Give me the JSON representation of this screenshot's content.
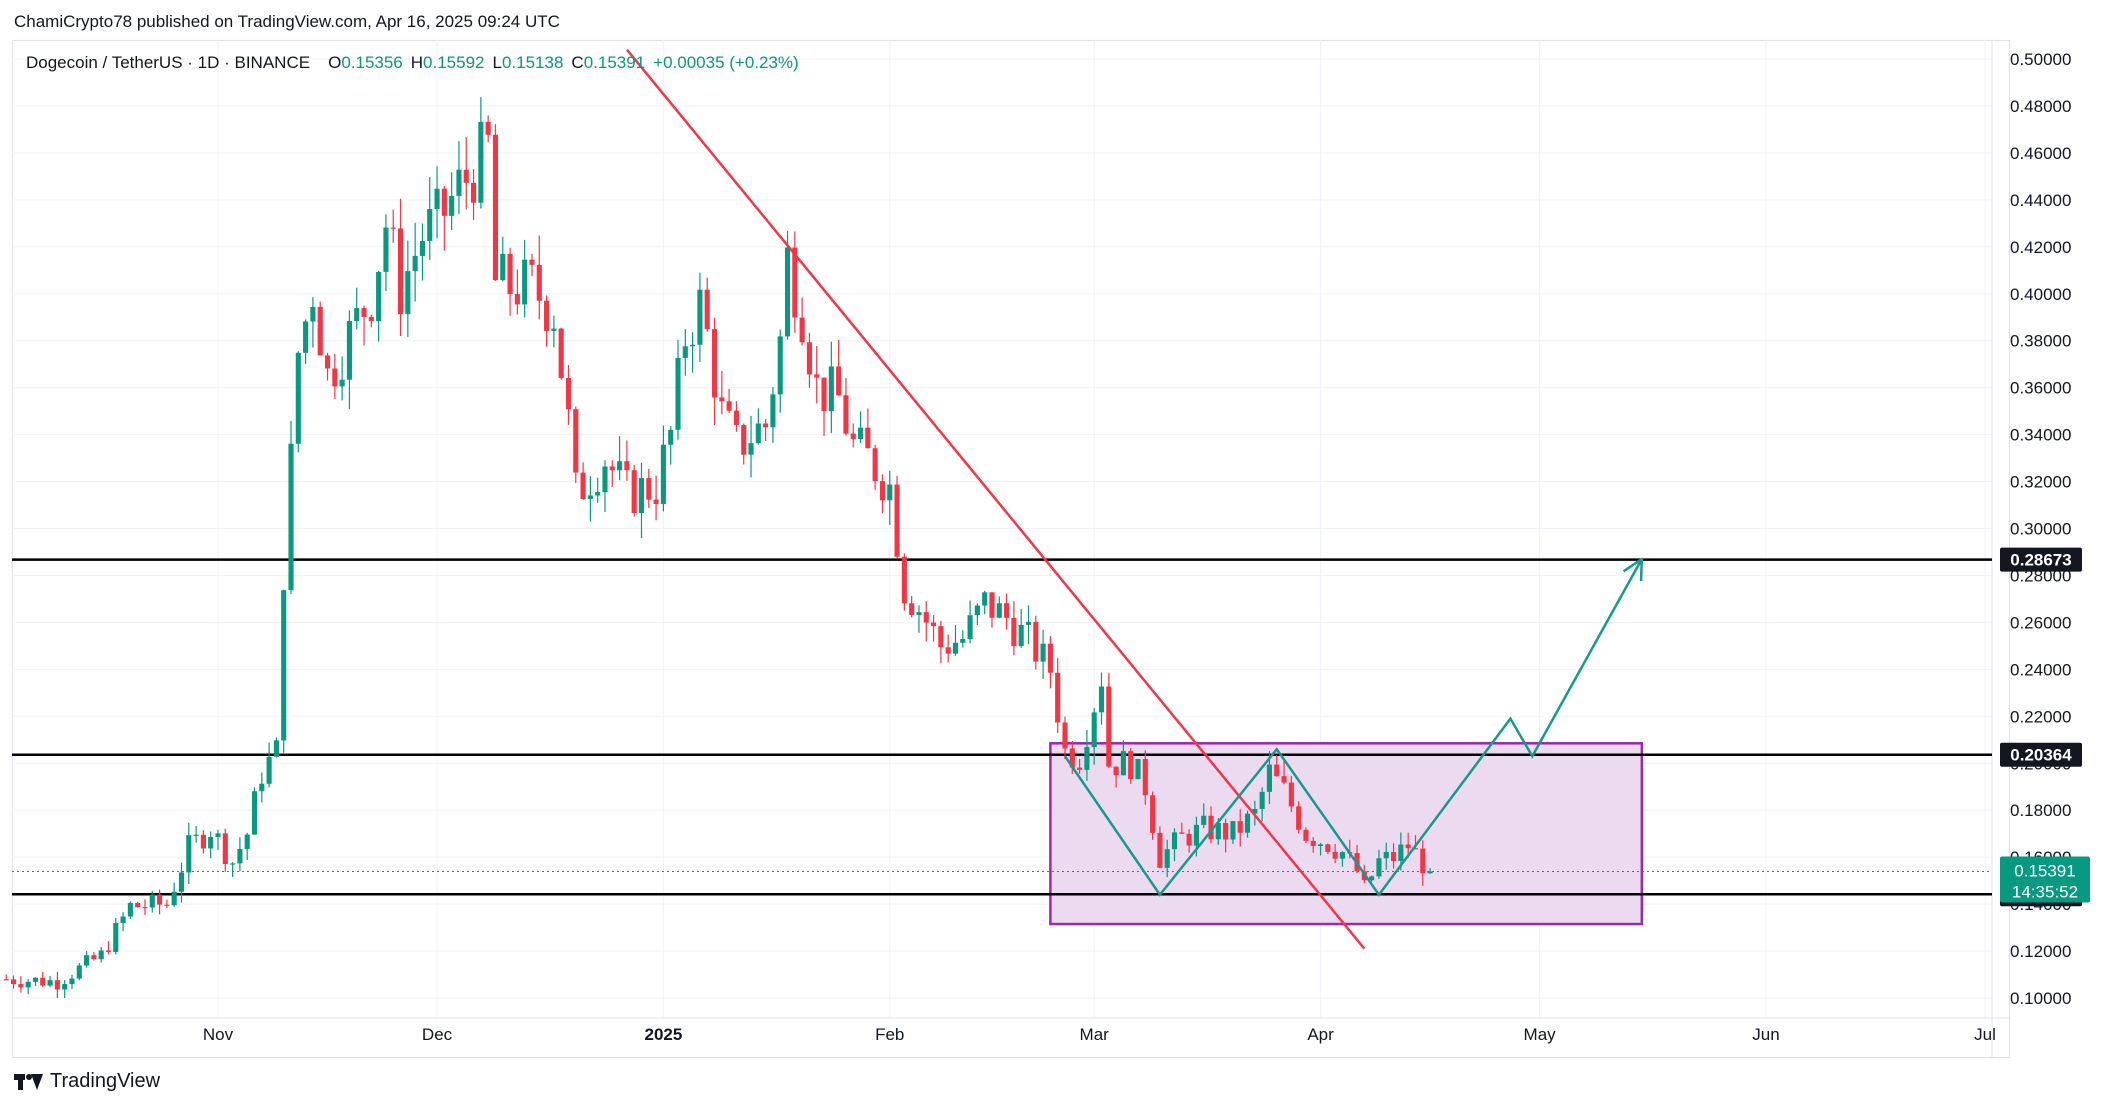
{
  "header": {
    "published_by": "ChamiCrypto78 published on TradingView.com, Apr 16, 2025 09:24 UTC"
  },
  "legend": {
    "symbol": "Dogecoin / TetherUS · 1D · BINANCE",
    "open_label": "O",
    "open": "0.15356",
    "high_label": "H",
    "high": "0.15592",
    "low_label": "L",
    "low": "0.15138",
    "close_label": "C",
    "close": "0.15391",
    "change": "+0.00035 (+0.23%)"
  },
  "footer": {
    "brand": "TradingView"
  },
  "colors": {
    "up": "#089981",
    "down": "#f23645",
    "trendline": "#f23645",
    "projection": "#159a8b",
    "zone_fill": "#e9d3ee",
    "zone_border": "#9c27b0",
    "level": "#000000"
  },
  "chart_data": {
    "type": "candlestick",
    "title": "Dogecoin / TetherUS · 1D · BINANCE",
    "ylim": [
      0.09,
      0.51
    ],
    "y_ticks": [
      "0.10000",
      "0.12000",
      "0.14000",
      "0.16000",
      "0.18000",
      "0.20000",
      "0.22000",
      "0.24000",
      "0.26000",
      "0.28000",
      "0.30000",
      "0.32000",
      "0.34000",
      "0.36000",
      "0.38000",
      "0.40000",
      "0.42000",
      "0.44000",
      "0.46000",
      "0.48000",
      "0.50000"
    ],
    "x_ticks": [
      {
        "label": "Nov",
        "date": "2024-11-01"
      },
      {
        "label": "Dec",
        "date": "2024-12-01"
      },
      {
        "label": "2025",
        "date": "2025-01-01"
      },
      {
        "label": "Feb",
        "date": "2025-02-01"
      },
      {
        "label": "Mar",
        "date": "2025-03-01"
      },
      {
        "label": "Apr",
        "date": "2025-04-01"
      },
      {
        "label": "May",
        "date": "2025-05-01"
      },
      {
        "label": "Jun",
        "date": "2025-06-01"
      },
      {
        "label": "Jul",
        "date": "2025-07-01"
      }
    ],
    "price_waypoints": [
      [
        "2024-10-03",
        0.108
      ],
      [
        "2024-10-10",
        0.107
      ],
      [
        "2024-10-16",
        0.118
      ],
      [
        "2024-10-20",
        0.139
      ],
      [
        "2024-10-25",
        0.14
      ],
      [
        "2024-10-28",
        0.164
      ],
      [
        "2024-10-31",
        0.172
      ],
      [
        "2024-11-03",
        0.158
      ],
      [
        "2024-11-05",
        0.17
      ],
      [
        "2024-11-07",
        0.196
      ],
      [
        "2024-11-09",
        0.205
      ],
      [
        "2024-11-10",
        0.282
      ],
      [
        "2024-11-12",
        0.375
      ],
      [
        "2024-11-14",
        0.402
      ],
      [
        "2024-11-16",
        0.365
      ],
      [
        "2024-11-19",
        0.382
      ],
      [
        "2024-11-22",
        0.4
      ],
      [
        "2024-11-24",
        0.43
      ],
      [
        "2024-11-26",
        0.402
      ],
      [
        "2024-11-29",
        0.425
      ],
      [
        "2024-12-01",
        0.43
      ],
      [
        "2024-12-04",
        0.445
      ],
      [
        "2024-12-06",
        0.453
      ],
      [
        "2024-12-08",
        0.462
      ],
      [
        "2024-12-09",
        0.405
      ],
      [
        "2024-12-11",
        0.403
      ],
      [
        "2024-12-14",
        0.403
      ],
      [
        "2024-12-17",
        0.392
      ],
      [
        "2024-12-19",
        0.345
      ],
      [
        "2024-12-20",
        0.315
      ],
      [
        "2024-12-24",
        0.33
      ],
      [
        "2024-12-27",
        0.315
      ],
      [
        "2024-12-31",
        0.318
      ],
      [
        "2025-01-02",
        0.34
      ],
      [
        "2025-01-04",
        0.382
      ],
      [
        "2025-01-06",
        0.395
      ],
      [
        "2025-01-07",
        0.382
      ],
      [
        "2025-01-09",
        0.348
      ],
      [
        "2025-01-11",
        0.335
      ],
      [
        "2025-01-13",
        0.34
      ],
      [
        "2025-01-15",
        0.344
      ],
      [
        "2025-01-17",
        0.38
      ],
      [
        "2025-01-18",
        0.415
      ],
      [
        "2025-01-20",
        0.393
      ],
      [
        "2025-01-22",
        0.36
      ],
      [
        "2025-01-25",
        0.355
      ],
      [
        "2025-01-27",
        0.335
      ],
      [
        "2025-01-29",
        0.33
      ],
      [
        "2025-02-01",
        0.318
      ],
      [
        "2025-02-03",
        0.275
      ],
      [
        "2025-02-05",
        0.266
      ],
      [
        "2025-02-08",
        0.25
      ],
      [
        "2025-02-11",
        0.253
      ],
      [
        "2025-02-14",
        0.268
      ],
      [
        "2025-02-17",
        0.262
      ],
      [
        "2025-02-20",
        0.252
      ],
      [
        "2025-02-23",
        0.24
      ],
      [
        "2025-02-25",
        0.205
      ],
      [
        "2025-02-27",
        0.203
      ],
      [
        "2025-03-02",
        0.237
      ],
      [
        "2025-03-03",
        0.2
      ],
      [
        "2025-03-06",
        0.2
      ],
      [
        "2025-03-08",
        0.19
      ],
      [
        "2025-03-10",
        0.16
      ],
      [
        "2025-03-13",
        0.168
      ],
      [
        "2025-03-16",
        0.172
      ],
      [
        "2025-03-20",
        0.17
      ],
      [
        "2025-03-23",
        0.178
      ],
      [
        "2025-03-25",
        0.196
      ],
      [
        "2025-03-27",
        0.188
      ],
      [
        "2025-03-30",
        0.17
      ],
      [
        "2025-04-02",
        0.166
      ],
      [
        "2025-04-04",
        0.162
      ],
      [
        "2025-04-06",
        0.154
      ],
      [
        "2025-04-07",
        0.146
      ],
      [
        "2025-04-09",
        0.158
      ],
      [
        "2025-04-11",
        0.16
      ],
      [
        "2025-04-13",
        0.165
      ],
      [
        "2025-04-16",
        0.1539
      ]
    ],
    "last_price": "0.15391",
    "countdown": "14:35:52",
    "levels": [
      {
        "price": 0.28673,
        "label": "0.28673"
      },
      {
        "price": 0.20364,
        "label": "0.20364"
      },
      {
        "price": 0.14418,
        "label": "0.14418"
      }
    ],
    "trendline": [
      [
        "2024-12-27",
        0.504
      ],
      [
        "2025-04-07",
        0.121
      ]
    ],
    "range_box": {
      "from": "2025-02-23",
      "to": "2025-05-15",
      "low": 0.1315,
      "high": 0.2085
    },
    "pattern_path": [
      [
        "2025-02-25",
        0.203
      ],
      [
        "2025-03-10",
        0.144
      ],
      [
        "2025-03-26",
        0.206
      ],
      [
        "2025-04-09",
        0.144
      ],
      [
        "2025-04-27",
        0.219
      ],
      [
        "2025-04-30",
        0.203
      ],
      [
        "2025-05-15",
        0.287
      ]
    ]
  }
}
